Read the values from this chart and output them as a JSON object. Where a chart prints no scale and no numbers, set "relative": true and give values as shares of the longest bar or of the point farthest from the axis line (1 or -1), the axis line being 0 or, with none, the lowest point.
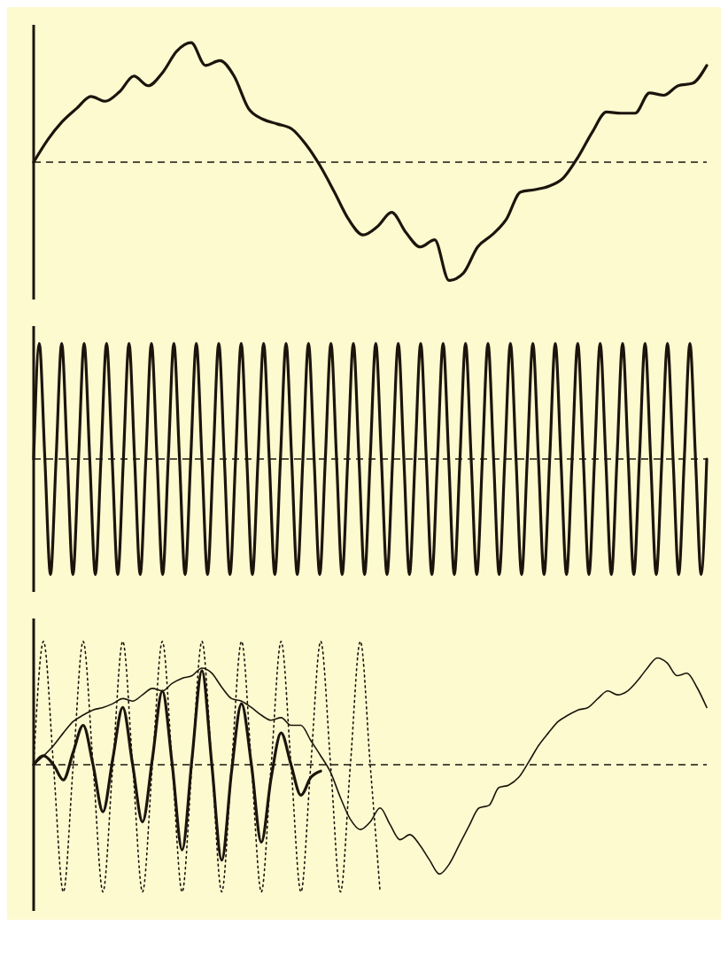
{
  "chart_data": [
    {
      "type": "line",
      "relative": true,
      "marker": "none",
      "tick_labels": false,
      "categories": [
        null,
        null,
        null,
        null,
        null,
        null,
        null,
        null,
        null,
        null,
        null,
        null,
        null,
        null,
        null,
        null,
        null,
        null,
        null,
        null,
        null,
        null,
        null,
        null,
        null,
        null,
        null,
        null,
        null,
        null,
        null,
        null,
        null,
        null,
        null,
        null,
        null,
        null,
        null,
        null,
        null,
        null,
        null,
        null,
        null,
        null,
        null,
        null
      ],
      "series": [
        {
          "color": "#1c140c",
          "line_style": "solid",
          "values": [
            0,
            0.19,
            0.34,
            0.45,
            0.55,
            0.51,
            0.59,
            0.72,
            0.64,
            0.75,
            0.93,
            1,
            0.81,
            0.85,
            0.72,
            0.45,
            0.36,
            0.32,
            0.28,
            0.15,
            -0.03,
            -0.25,
            -0.48,
            -0.61,
            -0.54,
            -0.42,
            -0.59,
            -0.71,
            -0.65,
            -0.99,
            -0.93,
            -0.71,
            -0.61,
            -0.48,
            -0.25,
            -0.23,
            -0.2,
            -0.13,
            0.04,
            0.25,
            0.42,
            0.41,
            0.41,
            0.58,
            0.56,
            0.64,
            0.66,
            0.81
          ]
        }
      ],
      "ref_lines": [
        {
          "axis": "y",
          "value": 0,
          "line_style": "dashed"
        }
      ]
    },
    {
      "type": "line",
      "relative": true,
      "marker": "none",
      "tick_labels": false,
      "categories": [
        null,
        null,
        null,
        null,
        null,
        null,
        null,
        null,
        null,
        null,
        null,
        null,
        null,
        null,
        null,
        null,
        null,
        null,
        null,
        null,
        null,
        null,
        null,
        null,
        null,
        null,
        null,
        null,
        null,
        null,
        null,
        null,
        null,
        null,
        null,
        null,
        null,
        null,
        null,
        null,
        null,
        null,
        null,
        null,
        null,
        null,
        null,
        null,
        null,
        null,
        null,
        null,
        null,
        null,
        null,
        null,
        null,
        null,
        null,
        null,
        null,
        null,
        null,
        null,
        null,
        null,
        null,
        null,
        null,
        null,
        null,
        null,
        null,
        null,
        null,
        null,
        null,
        null,
        null,
        null,
        null,
        null,
        null,
        null,
        null,
        null,
        null,
        null,
        null,
        null,
        null,
        null,
        null,
        null,
        null,
        null,
        null,
        null,
        null,
        null,
        null,
        null,
        null,
        null,
        null,
        null,
        null,
        null,
        null,
        null,
        null,
        null,
        null,
        null,
        null,
        null,
        null,
        null,
        null,
        null,
        null
      ],
      "series": [
        {
          "color": "#1c140c",
          "line_style": "solid",
          "values": [
            0,
            1,
            0,
            -1,
            0,
            1,
            0,
            -1,
            0,
            1,
            0,
            -1,
            0,
            1,
            0,
            -1,
            0,
            1,
            0,
            -1,
            0,
            1,
            0,
            -1,
            0,
            1,
            0,
            -1,
            0,
            1,
            0,
            -1,
            0,
            1,
            0,
            -1,
            0,
            1,
            0,
            -1,
            0,
            1,
            0,
            -1,
            0,
            1,
            0,
            -1,
            0,
            1,
            0,
            -1,
            0,
            1,
            0,
            -1,
            0,
            1,
            0,
            -1,
            0,
            1,
            0,
            -1,
            0,
            1,
            0,
            -1,
            0,
            1,
            0,
            -1,
            0,
            1,
            0,
            -1,
            0,
            1,
            0,
            -1,
            0,
            1,
            0,
            -1,
            0,
            1,
            0,
            -1,
            0,
            1,
            0,
            -1,
            0,
            1,
            0,
            -1,
            0,
            1,
            0,
            -1,
            0,
            1,
            0,
            -1,
            0,
            1,
            0,
            -1,
            0,
            1,
            0,
            -1,
            0,
            1,
            0,
            -1,
            0,
            1,
            0,
            -1,
            0
          ]
        }
      ],
      "ref_lines": [
        {
          "axis": "y",
          "value": 0,
          "line_style": "dashed"
        }
      ]
    },
    {
      "type": "line",
      "relative": true,
      "marker": "none",
      "tick_labels": false,
      "categories": [
        null,
        null,
        null,
        null,
        null,
        null,
        null,
        null,
        null,
        null,
        null,
        null,
        null,
        null,
        null,
        null,
        null,
        null,
        null,
        null,
        null,
        null,
        null,
        null,
        null,
        null,
        null,
        null,
        null,
        null,
        null,
        null,
        null,
        null,
        null,
        null,
        null,
        null,
        null,
        null,
        null,
        null,
        null,
        null,
        null,
        null,
        null,
        null,
        null,
        null,
        null,
        null,
        null,
        null,
        null,
        null,
        null,
        null,
        null,
        null,
        null,
        null,
        null,
        null,
        null,
        null,
        null,
        null,
        null
      ],
      "series": [
        {
          "color": "#1c140c",
          "line_style": "dotted",
          "values": [
            0,
            0.97,
            0,
            -1,
            0,
            0.97,
            0,
            -1,
            0,
            0.97,
            0,
            -1,
            0,
            0.97,
            0,
            -1,
            0,
            0.97,
            0,
            -1,
            0,
            0.97,
            0,
            -1,
            0,
            0.97,
            0,
            -1,
            0,
            0.97,
            0,
            -1,
            0,
            0.97,
            0,
            -1,
            null,
            null,
            null,
            null,
            null,
            null,
            null,
            null,
            null,
            null,
            null,
            null,
            null,
            null,
            null,
            null,
            null,
            null,
            null,
            null,
            null,
            null,
            null,
            null,
            null,
            null,
            null,
            null,
            null,
            null,
            null,
            null,
            null
          ]
        },
        {
          "color": "#1c140c",
          "line_style": "solid",
          "values": [
            0,
            0.07,
            0.15,
            0.25,
            0.34,
            0.39,
            0.43,
            0.45,
            0.48,
            0.52,
            0.5,
            0.55,
            0.6,
            0.58,
            0.64,
            0.68,
            0.7,
            0.76,
            0.72,
            0.61,
            0.52,
            0.5,
            0.45,
            0.39,
            0.35,
            0.37,
            0.31,
            0.31,
            0.19,
            0.07,
            -0.06,
            -0.26,
            -0.43,
            -0.51,
            -0.45,
            -0.34,
            -0.47,
            -0.59,
            -0.55,
            -0.63,
            -0.75,
            -0.86,
            -0.78,
            -0.63,
            -0.48,
            -0.34,
            -0.32,
            -0.18,
            -0.16,
            -0.1,
            0.02,
            0.15,
            0.25,
            0.34,
            0.39,
            0.43,
            0.45,
            0.52,
            0.58,
            0.55,
            0.58,
            0.66,
            0.76,
            0.84,
            0.8,
            0.7,
            0.72,
            0.61,
            0.45
          ]
        },
        {
          "color": "#1c140c",
          "line_style": "solid",
          "values": [
            0,
            0.07,
            0,
            -0.12,
            0.1,
            0.31,
            0,
            -0.37,
            0.05,
            0.45,
            0,
            -0.45,
            0.05,
            0.58,
            0,
            -0.67,
            0.05,
            0.74,
            0,
            -0.75,
            -0.05,
            0.48,
            0,
            -0.61,
            -0.1,
            0.25,
            0,
            -0.24,
            -0.1,
            -0.05,
            null,
            null,
            null,
            null,
            null,
            null,
            null,
            null,
            null,
            null,
            null,
            null,
            null,
            null,
            null,
            null,
            null,
            null,
            null,
            null,
            null,
            null,
            null,
            null,
            null,
            null,
            null,
            null,
            null,
            null,
            null,
            null,
            null,
            null,
            null,
            null,
            null,
            null,
            null
          ]
        }
      ],
      "ref_lines": [
        {
          "axis": "y",
          "value": 0,
          "line_style": "dashed"
        }
      ]
    }
  ]
}
